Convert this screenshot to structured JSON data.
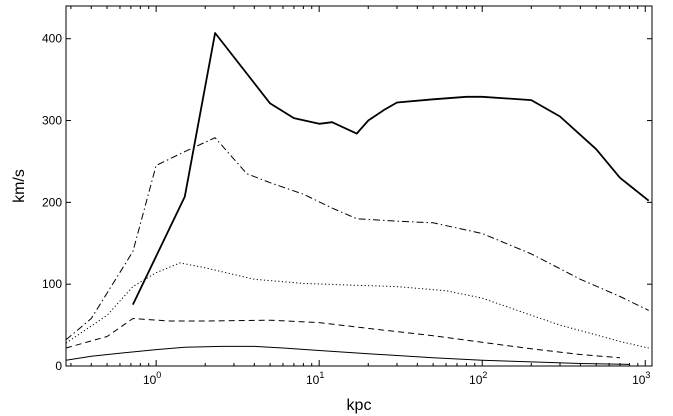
{
  "chart_data": {
    "type": "line",
    "title": "",
    "xlabel": "kpc",
    "ylabel": "km/s",
    "xscale": "log",
    "xlim": [
      0.28,
      1100
    ],
    "ylim": [
      0,
      440
    ],
    "grid": false,
    "legend": "none",
    "xticks": [
      {
        "base": "10",
        "exp": "0",
        "value": 1
      },
      {
        "base": "10",
        "exp": "1",
        "value": 10
      },
      {
        "base": "10",
        "exp": "2",
        "value": 100
      },
      {
        "base": "10",
        "exp": "3",
        "value": 1000
      }
    ],
    "yticks": [
      {
        "label": "0",
        "value": 0
      },
      {
        "label": "100",
        "value": 100
      },
      {
        "label": "200",
        "value": 200
      },
      {
        "label": "300",
        "value": 300
      },
      {
        "label": "400",
        "value": 400
      }
    ],
    "series": [
      {
        "style": "solid-thick",
        "color": "#000000",
        "points": [
          [
            0.72,
            75
          ],
          [
            1.5,
            207
          ],
          [
            2.3,
            407
          ],
          [
            5,
            321
          ],
          [
            7,
            303
          ],
          [
            10,
            296
          ],
          [
            12,
            298
          ],
          [
            17,
            284
          ],
          [
            20,
            300
          ],
          [
            25,
            313
          ],
          [
            30,
            322
          ],
          [
            50,
            326
          ],
          [
            80,
            329
          ],
          [
            100,
            329
          ],
          [
            200,
            325
          ],
          [
            300,
            305
          ],
          [
            500,
            265
          ],
          [
            700,
            230
          ],
          [
            1050,
            202
          ]
        ]
      },
      {
        "style": "dash-dot",
        "color": "#000000",
        "points": [
          [
            0.28,
            32
          ],
          [
            0.4,
            58
          ],
          [
            0.72,
            140
          ],
          [
            1.0,
            245
          ],
          [
            1.5,
            262
          ],
          [
            2.3,
            279
          ],
          [
            3.6,
            235
          ],
          [
            5,
            224
          ],
          [
            8,
            210
          ],
          [
            12,
            193
          ],
          [
            17,
            180
          ],
          [
            30,
            177
          ],
          [
            50,
            175
          ],
          [
            100,
            162
          ],
          [
            200,
            137
          ],
          [
            400,
            106
          ],
          [
            700,
            85
          ],
          [
            1050,
            68
          ]
        ]
      },
      {
        "style": "dotted",
        "color": "#000000",
        "points": [
          [
            0.28,
            28
          ],
          [
            0.5,
            62
          ],
          [
            0.72,
            97
          ],
          [
            1.0,
            114
          ],
          [
            1.4,
            126
          ],
          [
            2,
            120
          ],
          [
            4,
            106
          ],
          [
            8,
            101
          ],
          [
            15,
            99
          ],
          [
            30,
            97
          ],
          [
            60,
            92
          ],
          [
            100,
            83
          ],
          [
            200,
            62
          ],
          [
            300,
            50
          ],
          [
            500,
            38
          ],
          [
            700,
            30
          ],
          [
            1050,
            22
          ]
        ]
      },
      {
        "style": "dashed",
        "color": "#000000",
        "points": [
          [
            0.28,
            22
          ],
          [
            0.5,
            36
          ],
          [
            0.72,
            58
          ],
          [
            1.2,
            55
          ],
          [
            2,
            55
          ],
          [
            5,
            56
          ],
          [
            10,
            53
          ],
          [
            20,
            46
          ],
          [
            50,
            37
          ],
          [
            100,
            29
          ],
          [
            200,
            21
          ],
          [
            400,
            14
          ],
          [
            700,
            10
          ]
        ]
      },
      {
        "style": "solid-thin",
        "color": "#000000",
        "points": [
          [
            0.28,
            7
          ],
          [
            0.4,
            12
          ],
          [
            0.7,
            17
          ],
          [
            1.0,
            20
          ],
          [
            1.5,
            23
          ],
          [
            2.5,
            24
          ],
          [
            4,
            24
          ],
          [
            6,
            22
          ],
          [
            10,
            19
          ],
          [
            20,
            15
          ],
          [
            50,
            10
          ],
          [
            100,
            7
          ],
          [
            200,
            5
          ],
          [
            400,
            3
          ],
          [
            800,
            2
          ]
        ]
      }
    ]
  }
}
